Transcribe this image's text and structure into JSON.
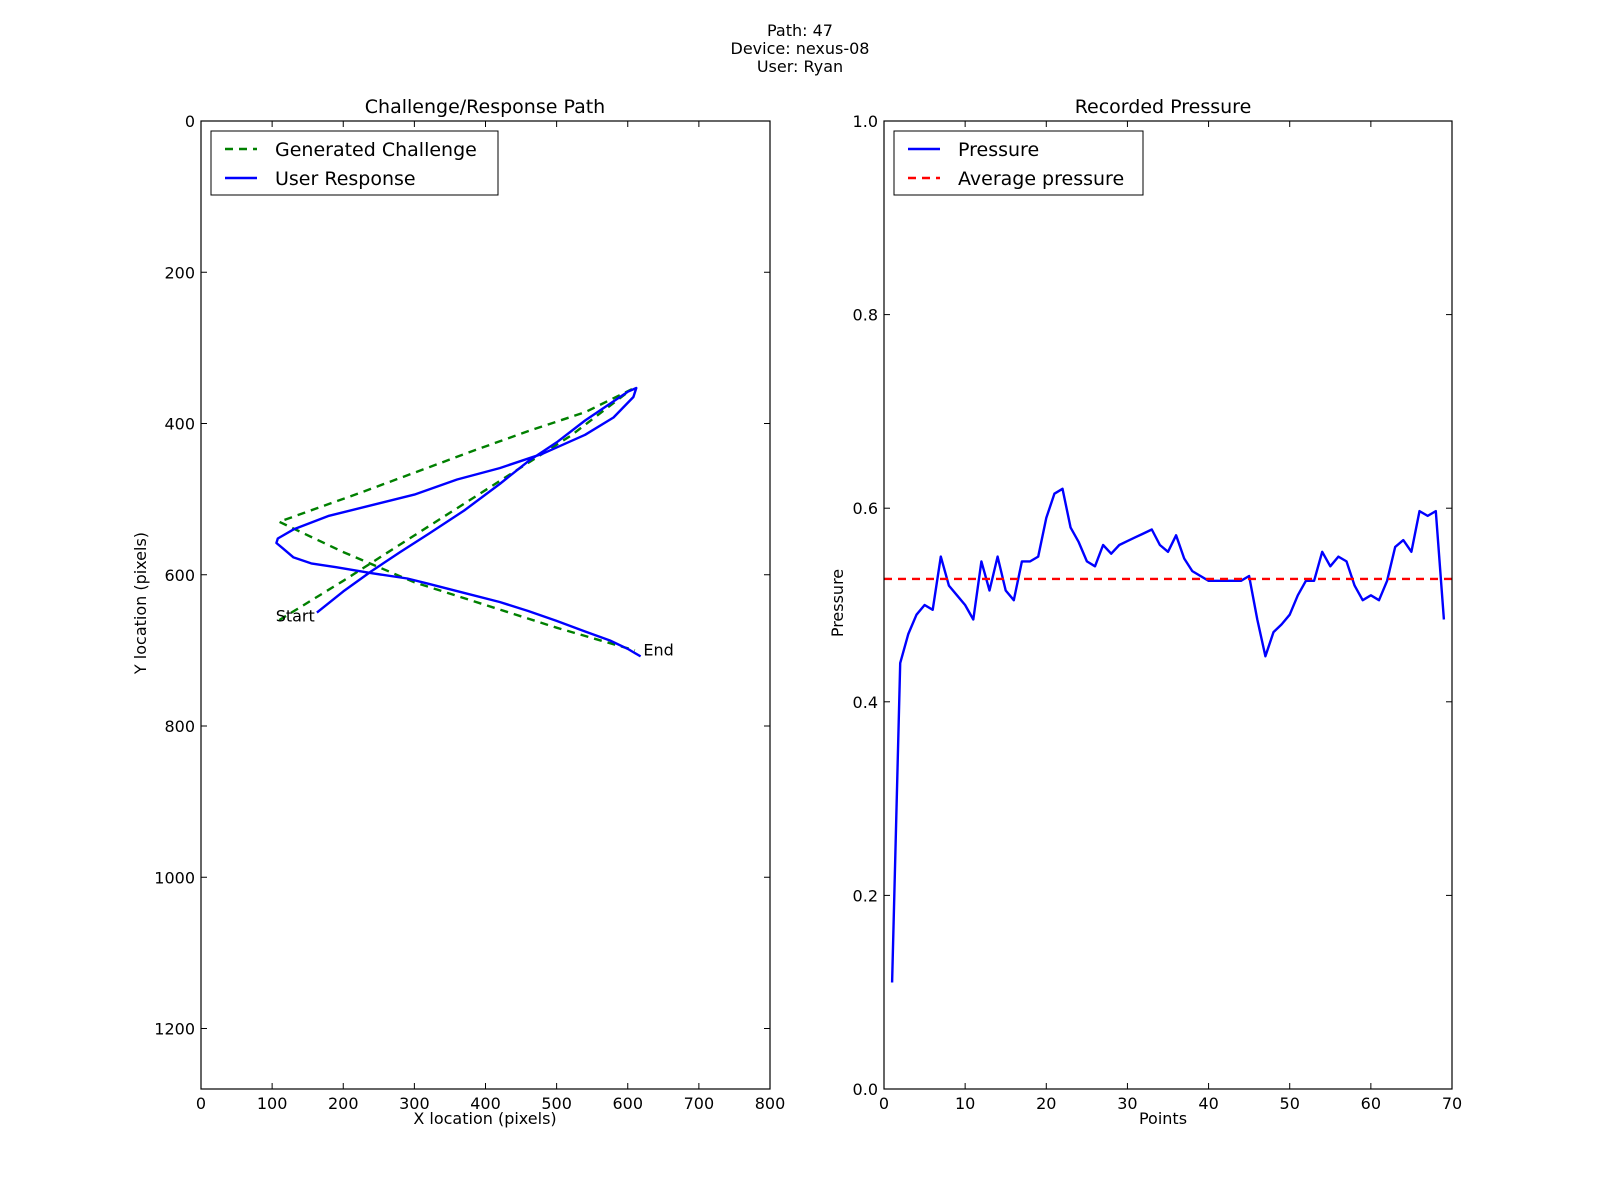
{
  "figure": {
    "suptitle_lines": [
      "Path: 47",
      "Device: nexus-08",
      "User: Ryan"
    ]
  },
  "chart_data": [
    {
      "type": "line",
      "title": "Challenge/Response Path",
      "xlabel": "X location (pixels)",
      "ylabel": "Y location (pixels)",
      "xlim": [
        0,
        800
      ],
      "ylim": [
        1280,
        0
      ],
      "y_inverted": true,
      "xticks": [
        "0",
        "100",
        "200",
        "300",
        "400",
        "500",
        "600",
        "700",
        "800"
      ],
      "yticks": [
        "0",
        "200",
        "400",
        "600",
        "800",
        "1000",
        "1200"
      ],
      "legend_position": "upper-left",
      "grid": false,
      "series": [
        {
          "name": "Generated Challenge",
          "color": "#008000",
          "style": "dashed",
          "x": [
            110,
            200,
            280,
            360,
            440,
            520,
            605,
            540,
            460,
            380,
            300,
            220,
            160,
            110,
            200,
            300,
            400,
            500,
            610
          ],
          "y": [
            660,
            608,
            560,
            512,
            464,
            416,
            355,
            385,
            410,
            437,
            465,
            493,
            513,
            530,
            570,
            610,
            640,
            670,
            700
          ]
        },
        {
          "name": "User Response",
          "color": "#0000ff",
          "style": "solid",
          "x": [
            163,
            200,
            240,
            280,
            320,
            370,
            420,
            460,
            500,
            540,
            570,
            600,
            612,
            608,
            580,
            540,
            480,
            420,
            360,
            300,
            240,
            180,
            130,
            108,
            106,
            115,
            130,
            155,
            190,
            240,
            290,
            320,
            370,
            420,
            460,
            500,
            540,
            575,
            600,
            618
          ],
          "y": [
            650,
            622,
            595,
            570,
            546,
            515,
            480,
            450,
            425,
            396,
            377,
            358,
            353,
            365,
            392,
            415,
            440,
            459,
            474,
            494,
            508,
            522,
            540,
            552,
            558,
            565,
            577,
            585,
            590,
            598,
            605,
            612,
            624,
            636,
            648,
            661,
            675,
            687,
            698,
            708
          ]
        }
      ],
      "annotations": [
        {
          "text": "Start",
          "x": 105,
          "y": 655
        },
        {
          "text": "End",
          "x": 622,
          "y": 700
        }
      ]
    },
    {
      "type": "line",
      "title": "Recorded Pressure",
      "xlabel": "Points",
      "ylabel": "Pressure",
      "xlim": [
        0,
        70
      ],
      "ylim": [
        0.0,
        1.0
      ],
      "xticks": [
        "0",
        "10",
        "20",
        "30",
        "40",
        "50",
        "60",
        "70"
      ],
      "yticks": [
        "0.0",
        "0.2",
        "0.4",
        "0.6",
        "0.8",
        "1.0"
      ],
      "legend_position": "upper-left",
      "grid": false,
      "series": [
        {
          "name": "Pressure",
          "color": "#0000ff",
          "style": "solid",
          "x": [
            1,
            2,
            3,
            4,
            5,
            6,
            7,
            8,
            9,
            10,
            11,
            12,
            13,
            14,
            15,
            16,
            17,
            18,
            19,
            20,
            21,
            22,
            23,
            24,
            25,
            26,
            27,
            28,
            29,
            30,
            31,
            32,
            33,
            34,
            35,
            36,
            37,
            38,
            39,
            40,
            41,
            42,
            43,
            44,
            45,
            46,
            47,
            48,
            49,
            50,
            51,
            52,
            53,
            54,
            55,
            56,
            57,
            58,
            59,
            60,
            61,
            62,
            63,
            64,
            65,
            66,
            67,
            68,
            69
          ],
          "y": [
            0.11,
            0.44,
            0.47,
            0.49,
            0.5,
            0.495,
            0.55,
            0.52,
            0.51,
            0.5,
            0.485,
            0.545,
            0.515,
            0.55,
            0.515,
            0.505,
            0.545,
            0.545,
            0.55,
            0.59,
            0.615,
            0.62,
            0.58,
            0.565,
            0.545,
            0.54,
            0.562,
            0.553,
            0.562,
            0.566,
            0.57,
            0.574,
            0.578,
            0.562,
            0.555,
            0.572,
            0.548,
            0.535,
            0.53,
            0.525,
            0.525,
            0.525,
            0.525,
            0.525,
            0.53,
            0.485,
            0.447,
            0.472,
            0.48,
            0.49,
            0.51,
            0.525,
            0.525,
            0.555,
            0.54,
            0.55,
            0.545,
            0.52,
            0.505,
            0.51,
            0.505,
            0.525,
            0.56,
            0.567,
            0.555,
            0.597,
            0.592,
            0.597,
            0.485
          ]
        },
        {
          "name": "Average pressure",
          "color": "#ff0000",
          "style": "dashed",
          "x": [
            0,
            70
          ],
          "y": [
            0.527,
            0.527
          ]
        }
      ]
    }
  ]
}
